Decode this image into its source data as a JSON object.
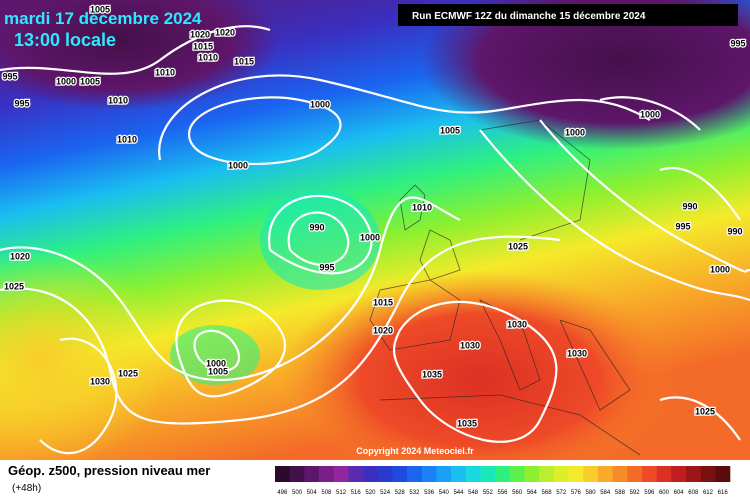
{
  "header": {
    "date": "mardi 17 décembre 2024",
    "time": "13:00 locale",
    "run": "Run ECMWF 12Z du dimanche 15 décembre 2024"
  },
  "copyright": "Copyright 2024 Meteociel.fr",
  "isobars": [
    "995",
    "995",
    "1000",
    "1005",
    "1005",
    "1020",
    "1015",
    "1020",
    "1010",
    "1015",
    "1010",
    "1010",
    "1010",
    "1000",
    "1005",
    "1000",
    "1000",
    "1000",
    "995",
    "990",
    "995",
    "990",
    "1000",
    "990",
    "995",
    "1000",
    "1010",
    "1025",
    "1020",
    "1025",
    "1015",
    "1020",
    "1030",
    "1030",
    "1000",
    "1005",
    "1025",
    "1030",
    "1035",
    "1030",
    "1035",
    "1025"
  ],
  "legend": {
    "title": "Géop. z500, pression niveau mer",
    "subtitle": "(+48h)",
    "labels": [
      496,
      500,
      504,
      508,
      512,
      516,
      520,
      524,
      528,
      532,
      536,
      540,
      544,
      548,
      552,
      556,
      560,
      564,
      568,
      572,
      576,
      580,
      584,
      588,
      592,
      596,
      600,
      604,
      608,
      612,
      616
    ],
    "colors": [
      "#2b0b2b",
      "#44104a",
      "#5e166a",
      "#7b1d8a",
      "#93259e",
      "#5a2ab0",
      "#3a2fc0",
      "#2a3ad0",
      "#1e4ae0",
      "#1a64f0",
      "#1a82f5",
      "#1aa0f5",
      "#1abef0",
      "#1ad8e0",
      "#1ae8b8",
      "#2ef080",
      "#5af050",
      "#8cf030",
      "#b8f030",
      "#dcf02a",
      "#f5ea2a",
      "#f8cc2a",
      "#f8aa28",
      "#f88a28",
      "#f46a28",
      "#ee4a28",
      "#dc3024",
      "#c01e20",
      "#9a1618",
      "#7a1010",
      "#5a0c0c"
    ]
  }
}
